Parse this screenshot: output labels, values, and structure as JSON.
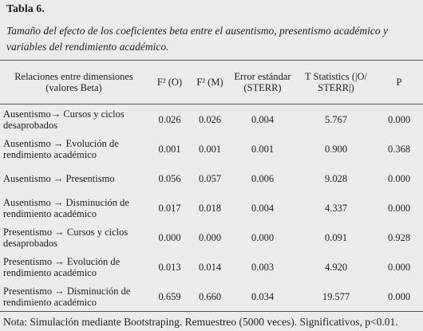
{
  "title": "Tabla 6.",
  "caption": "Tamaño del efecto de los coeficientes beta entre el ausentismo, presentismo académico y variables del rendimiento académico.",
  "table": {
    "header": [
      "Relaciones entre dimensiones (valores Beta)",
      "F² (O)",
      "F² (M)",
      "Error estándar (STERR)",
      "T Statistics (|O/ STERR|)",
      "P"
    ],
    "rows": [
      [
        "Ausentismo→ Cursos y ciclos desaprobados",
        "0.026",
        "0.026",
        "0.004",
        "5.767",
        "0.000"
      ],
      [
        "Ausentismo → Evolución de rendimiento académico",
        "0.001",
        "0.001",
        "0.001",
        "0.900",
        "0.368"
      ],
      [
        "Ausentismo → Presentismo",
        "0.056",
        "0.057",
        "0.006",
        "9.028",
        "0.000"
      ],
      [
        "Ausentismo → Disminución de rendimiento académico",
        "0.017",
        "0.018",
        "0.004",
        "4.337",
        "0.000"
      ],
      [
        "Presentismo → Cursos y ciclos desaprobados",
        "0.000",
        "0.000",
        "0.000",
        "0.091",
        "0.928"
      ],
      [
        "Presentismo → Evolución de rendimiento académico",
        "0.013",
        "0.014",
        "0.003",
        "4.920",
        "0.000"
      ],
      [
        "Presentismo → Disminución de rendimiento académico",
        "0.659",
        "0.660",
        "0.034",
        "19.577",
        "0.000"
      ]
    ]
  },
  "note": "Nota: Simulación mediante Bootstraping. Remuestreo (5000 veces). Significativos, p<0.01."
}
